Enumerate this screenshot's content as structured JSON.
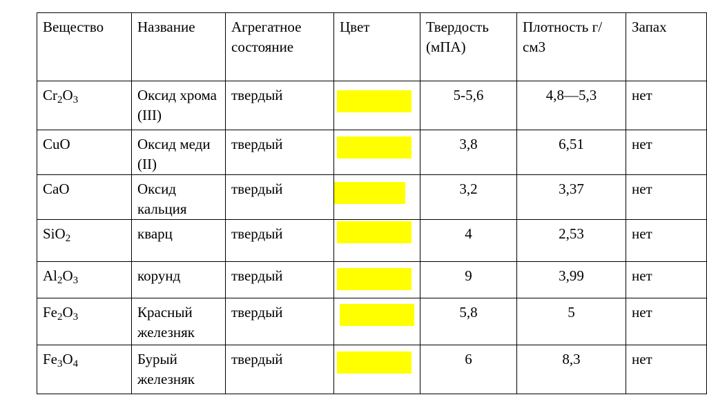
{
  "headers": [
    "Вещество",
    "Название",
    "Агрегатное состояние",
    "Цвет",
    "Твердость (мПА)",
    "Плотность г/см3",
    "Запах"
  ],
  "swatch_color": "#ffff00",
  "rows": [
    {
      "formula": [
        {
          "t": "Cr"
        },
        {
          "t": "2",
          "sub": true
        },
        {
          "t": "O"
        },
        {
          "t": "3",
          "sub": true
        }
      ],
      "name": "Оксид хрома (III)",
      "state": "твердый",
      "hardness": "5-5,6",
      "density": "4,8—5,3",
      "smell": "нет"
    },
    {
      "formula": [
        {
          "t": "CuO"
        }
      ],
      "name": "Оксид меди (II)",
      "state": "твердый",
      "hardness": "3,8",
      "density": "6,51",
      "smell": "нет"
    },
    {
      "formula": [
        {
          "t": "CaO"
        }
      ],
      "name": "Оксид кальция",
      "state": "твердый",
      "hardness": "3,2",
      "density": "3,37",
      "smell": "нет"
    },
    {
      "formula": [
        {
          "t": "SiO"
        },
        {
          "t": "2",
          "sub": true
        }
      ],
      "name": "кварц",
      "state": "твердый",
      "hardness": "4",
      "density": "2,53",
      "smell": "нет"
    },
    {
      "formula": [
        {
          "t": "Al"
        },
        {
          "t": "2",
          "sub": true
        },
        {
          "t": "O"
        },
        {
          "t": "3",
          "sub": true
        }
      ],
      "name": "корунд",
      "state": "твердый",
      "hardness": "9",
      "density": "3,99",
      "smell": "нет"
    },
    {
      "formula": [
        {
          "t": "Fe"
        },
        {
          "t": "2",
          "sub": true
        },
        {
          "t": "O"
        },
        {
          "t": "3",
          "sub": true
        }
      ],
      "name": "Красный железняк",
      "state": "твердый",
      "hardness": "5,8",
      "density": "5",
      "smell": "нет"
    },
    {
      "formula": [
        {
          "t": "Fe"
        },
        {
          "t": "3",
          "sub": true
        },
        {
          "t": "O"
        },
        {
          "t": "4",
          "sub": true
        }
      ],
      "name": "Бурый железняк",
      "state": "твердый",
      "hardness": "6",
      "density": "8,3",
      "smell": "нет"
    }
  ]
}
